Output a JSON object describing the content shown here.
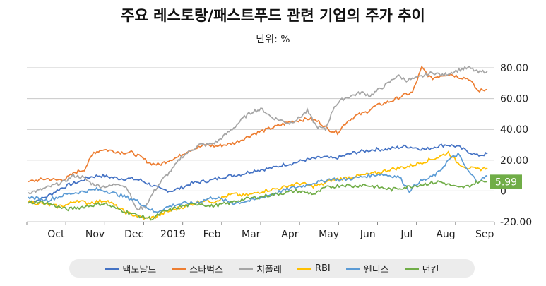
{
  "title": "주요 레스토랑/패스트푸드 관련 기업의 주가 추이",
  "subtitle": "단위: %",
  "chart_data": {
    "type": "line",
    "title": "주요 레스토랑/패스트푸드 관련 기업의 주가 추이",
    "subtitle": "단위: %",
    "x_labels": [
      "Oct",
      "Nov",
      "Dec",
      "2019",
      "Feb",
      "Mar",
      "Apr",
      "May",
      "Jun",
      "Jul",
      "Aug",
      "Sep"
    ],
    "y_ticks": [
      "80.00",
      "60.00",
      "40.00",
      "20.00",
      "0",
      "-20.00"
    ],
    "ylim": [
      -20,
      85
    ],
    "grid": true,
    "legend_position": "bottom",
    "last_value_label": "5.99",
    "series": [
      {
        "name": "맥도날드",
        "color": "#4472c4",
        "values": [
          -7,
          -6,
          -3,
          1,
          4,
          6,
          9,
          10,
          9,
          8,
          8,
          7,
          4,
          1,
          0,
          2,
          5,
          6,
          7,
          9,
          10,
          11,
          13,
          14,
          15,
          17,
          18,
          20,
          21,
          22,
          21,
          23,
          25,
          26,
          27,
          27,
          28,
          29,
          28,
          27,
          29,
          30,
          29,
          26,
          23,
          24
        ]
      },
      {
        "name": "스타벅스",
        "color": "#ed7d31",
        "values": [
          6,
          7,
          8,
          7,
          8,
          12,
          14,
          25,
          27,
          26,
          25,
          25,
          22,
          18,
          17,
          20,
          22,
          26,
          28,
          30,
          29,
          30,
          31,
          34,
          37,
          39,
          41,
          43,
          45,
          46,
          47,
          45,
          40,
          38,
          45,
          49,
          51,
          55,
          57,
          59,
          62,
          64,
          80,
          73,
          75,
          76,
          74,
          73,
          65,
          66
        ]
      },
      {
        "name": "치폴레",
        "color": "#a5a5a5",
        "values": [
          -1,
          0,
          2,
          4,
          6,
          10,
          9,
          5,
          3,
          3,
          5,
          2,
          -12,
          -10,
          0,
          8,
          14,
          22,
          26,
          30,
          30,
          32,
          37,
          42,
          48,
          52,
          53,
          48,
          46,
          44,
          47,
          52,
          42,
          40,
          55,
          60,
          62,
          64,
          62,
          66,
          70,
          75,
          72,
          73,
          75,
          77,
          75,
          77,
          79,
          80,
          77,
          78
        ]
      },
      {
        "name": "RBI",
        "color": "#ffc000",
        "values": [
          -7,
          -8,
          -9,
          -10,
          -9,
          -6,
          -8,
          -7,
          -6,
          -10,
          -14,
          -16,
          -18,
          -17,
          -14,
          -12,
          -10,
          -8,
          -6,
          -7,
          -4,
          -2,
          -3,
          -2,
          0,
          1,
          2,
          4,
          5,
          3,
          4,
          7,
          8,
          9,
          10,
          11,
          12,
          14,
          15,
          16,
          18,
          20,
          22,
          25,
          18,
          15,
          14,
          15
        ]
      },
      {
        "name": "웬디스",
        "color": "#5b9bd5",
        "values": [
          -4,
          -5,
          -6,
          -4,
          -2,
          -1,
          0,
          1,
          0,
          -2,
          -4,
          -6,
          -10,
          -14,
          -11,
          -9,
          -8,
          -8,
          -6,
          -4,
          -6,
          -8,
          -7,
          -6,
          -4,
          -2,
          0,
          2,
          3,
          5,
          6,
          8,
          7,
          8,
          9,
          10,
          11,
          10,
          9,
          0,
          6,
          8,
          12,
          20,
          24,
          13,
          6,
          10
        ]
      },
      {
        "name": "던킨",
        "color": "#70ad47",
        "values": [
          -8,
          -7,
          -8,
          -10,
          -12,
          -11,
          -10,
          -9,
          -8,
          -11,
          -13,
          -15,
          -17,
          -18,
          -14,
          -12,
          -10,
          -9,
          -8,
          -10,
          -9,
          -8,
          -6,
          -5,
          -4,
          -3,
          -2,
          -1,
          0,
          -1,
          -2,
          2,
          3,
          4,
          3,
          4,
          3,
          2,
          1,
          2,
          3,
          4,
          5,
          6,
          4,
          2,
          3,
          6,
          5.99
        ]
      }
    ]
  }
}
